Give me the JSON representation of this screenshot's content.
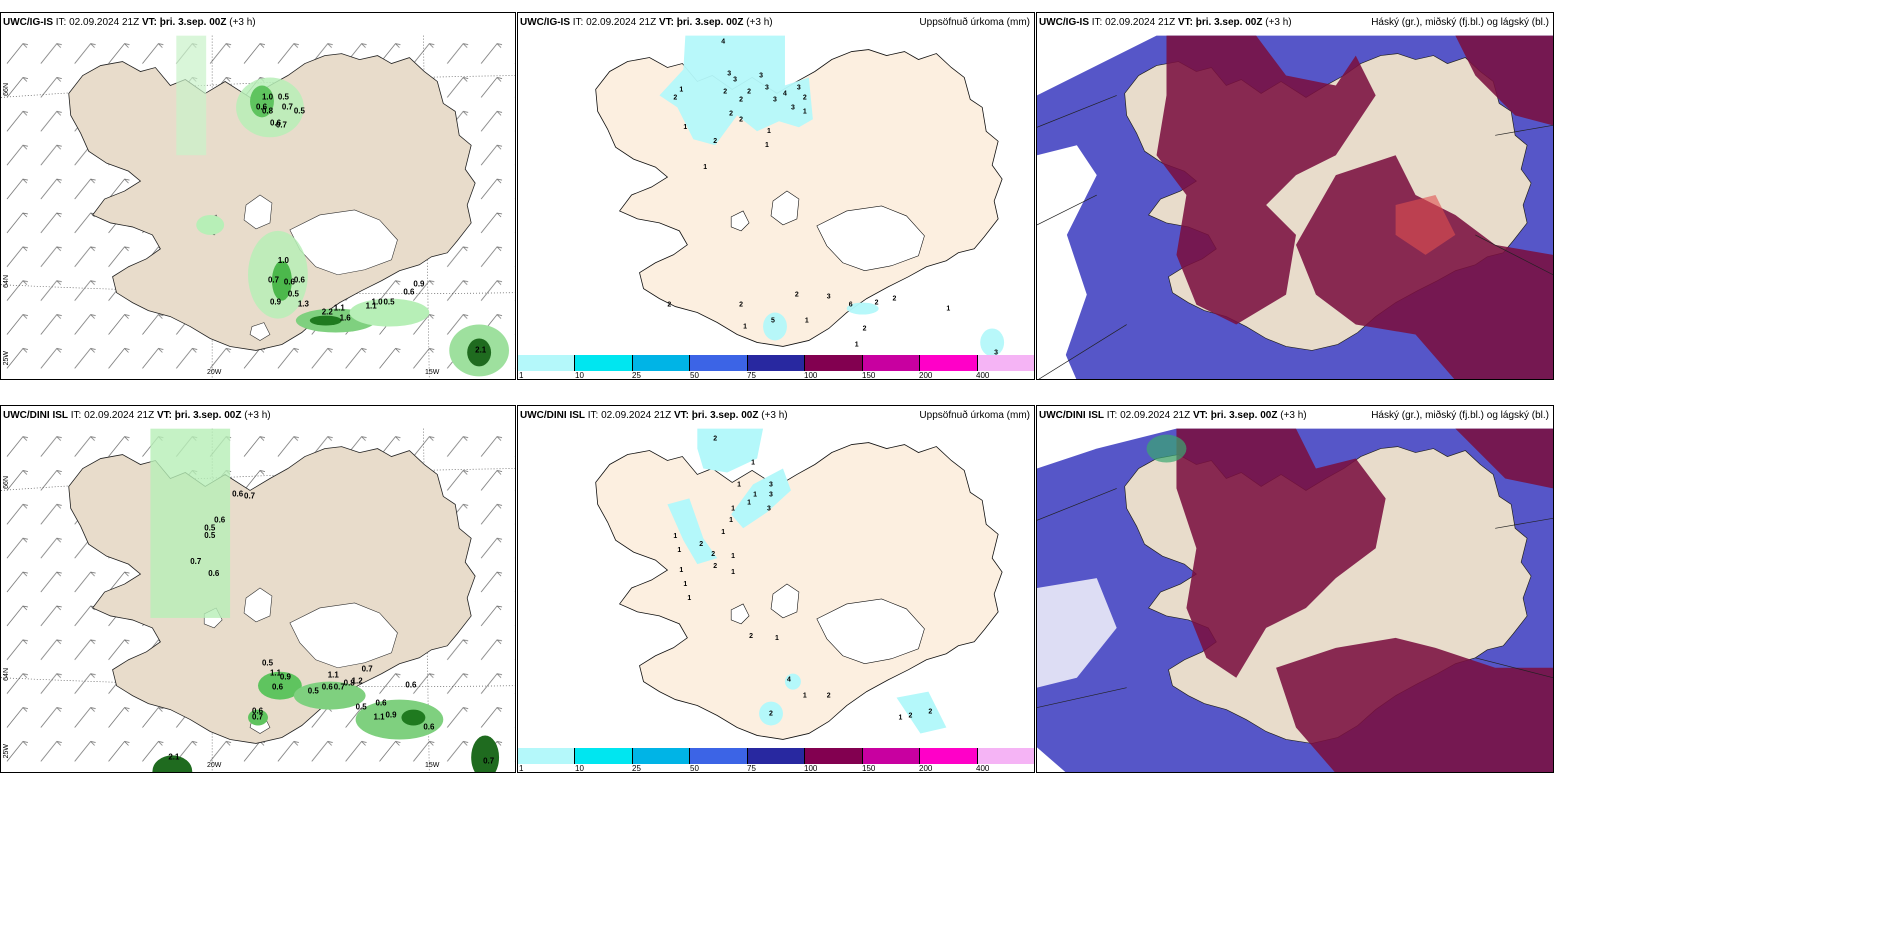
{
  "rows": [
    {
      "model": "UWC/IG-IS",
      "it_label": "IT:",
      "it_value": "02.09.2024 21Z",
      "vt_label": "VT:",
      "vt_value": "þri. 3.sep. 00Z",
      "lead": "(+3 h)",
      "wind_values": [
        "1.0",
        "0.5",
        "0.6",
        "0.7",
        "0.5",
        "0.6",
        "0.8",
        "0.7",
        "1.0",
        "0.7",
        "0.6",
        "0.6",
        "0.5",
        "0.9",
        "1.3",
        "2.2",
        "1.1",
        "1.6",
        "1.1",
        "1.0",
        "0.5",
        "0.6",
        "0.9",
        "2.1"
      ],
      "precip_values": [
        "4",
        "1",
        "2",
        "3",
        "3",
        "3",
        "2",
        "2",
        "2",
        "3",
        "3",
        "4",
        "3",
        "3",
        "2",
        "2",
        "2",
        "1",
        "1",
        "2",
        "1",
        "1",
        "1",
        "2",
        "2",
        "2",
        "3",
        "6",
        "2",
        "2",
        "1",
        "5",
        "1",
        "2",
        "1",
        "1",
        "3"
      ]
    },
    {
      "model": "UWC/DINI ISL",
      "it_label": "IT:",
      "it_value": "02.09.2024 21Z",
      "vt_label": "VT:",
      "vt_value": "þri. 3.sep. 00Z",
      "lead": "(+3 h)",
      "wind_values": [
        "0.6",
        "0.7",
        "0.6",
        "0.5",
        "0.5",
        "0.7",
        "0.6",
        "0.5",
        "1.1",
        "0.9",
        "0.6",
        "1.1",
        "0.6",
        "0.7",
        "0.8",
        "0.7",
        "1.2",
        "0.5",
        "0.6",
        "0.7",
        "0.6",
        "1.1",
        "0.9",
        "0.5",
        "0.6",
        "0.6",
        "0.7",
        "2.1"
      ],
      "precip_values": [
        "2",
        "1",
        "1",
        "3",
        "3",
        "3",
        "1",
        "1",
        "1",
        "1",
        "1",
        "2",
        "2",
        "1",
        "1",
        "1",
        "1",
        "1",
        "1",
        "1",
        "2",
        "2",
        "1",
        "4",
        "1",
        "2",
        "2",
        "1",
        "2",
        "2"
      ]
    }
  ],
  "precip_title": "Uppsöfnuð úrkoma (mm)",
  "cloud_title": "Háský (gr.), miðský (fj.bl.) og lágský (bl.)",
  "axes": {
    "lat_66": "66N",
    "lat_64": "64N",
    "lat_25w": "25W",
    "lon_20w": "20W",
    "lon_15w": "15W"
  },
  "colorbar": {
    "ticks": [
      "1",
      "10",
      "25",
      "50",
      "75",
      "100",
      "150",
      "200",
      "400"
    ],
    "colors": [
      "#b4f8fa",
      "#00e6f0",
      "#00b4e6",
      "#3c64e6",
      "#2828a0",
      "#820050",
      "#c800a0",
      "#ff00c8",
      "#f5b4f5"
    ]
  }
}
